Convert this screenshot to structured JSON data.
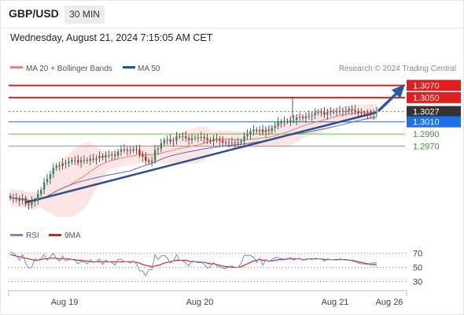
{
  "header": {
    "symbol": "GBP/USD",
    "timeframe": "30 MIN",
    "datetime": "Wednesday, August 21, 2024 7:15:05 AM CET"
  },
  "legend": {
    "ma20": "MA 20 + Bollinger Bands",
    "ma50": "MA 50",
    "credit": "Research © 2024 Trading Central",
    "rsi": "RSI",
    "ma9": "9MA"
  },
  "colors": {
    "ma20": "#f08080",
    "ma50": "#2f4f8f",
    "bollinger_fill": "#fde0e0",
    "resistance": "#e02020",
    "support": "#6abf4b",
    "pivot": "#2f6f9f",
    "last_price": "#333333",
    "pivot_label": "#1e6fe8",
    "arrow": "#2c5aa0",
    "rsi": "#6b8fd6",
    "rsi_ma": "#e02020"
  },
  "chart_data": {
    "type": "candlestick",
    "x_labels": [
      "Aug 19",
      "Aug 20",
      "Aug 21",
      "Aug 26"
    ],
    "levels": [
      {
        "value": 1.307,
        "label": "1.3070",
        "kind": "resistance"
      },
      {
        "value": 1.305,
        "label": "1.3050",
        "kind": "resistance"
      },
      {
        "value": 1.3027,
        "label": "1.3027",
        "kind": "last"
      },
      {
        "value": 1.301,
        "label": "1.3010",
        "kind": "pivot"
      },
      {
        "value": 1.299,
        "label": "1.2990",
        "kind": "support"
      },
      {
        "value": 1.297,
        "label": "1.2970",
        "kind": "support"
      }
    ],
    "price_range": [
      1.2865,
      1.3075
    ],
    "close": [
      1.2885,
      1.2884,
      1.2883,
      1.288,
      1.2884,
      1.2875,
      1.2873,
      1.2879,
      1.288,
      1.2891,
      1.2898,
      1.2911,
      1.2916,
      1.2924,
      1.2934,
      1.2938,
      1.2937,
      1.2942,
      1.2942,
      1.2944,
      1.2947,
      1.2947,
      1.2943,
      1.2947,
      1.2947,
      1.2946,
      1.2949,
      1.2948,
      1.295,
      1.2954,
      1.2951,
      1.2955,
      1.2955,
      1.2956,
      1.2954,
      1.2961,
      1.2965,
      1.2964,
      1.2963,
      1.2963,
      1.2965,
      1.2964,
      1.2956,
      1.2953,
      1.2946,
      1.2944,
      1.2946,
      1.2964,
      1.2966,
      1.2975,
      1.298,
      1.2981,
      1.2978,
      1.2979,
      1.2986,
      1.2986,
      1.2986,
      1.2983,
      1.298,
      1.2983,
      1.2984,
      1.2984,
      1.2985,
      1.2983,
      1.298,
      1.2978,
      1.2982,
      1.2981,
      1.2979,
      1.2976,
      1.2975,
      1.2976,
      1.2976,
      1.2976,
      1.2976,
      1.2978,
      1.2986,
      1.2989,
      1.2994,
      1.2997,
      1.2995,
      1.2997,
      1.2993,
      1.2997,
      1.2995,
      1.3,
      1.3003,
      1.3009,
      1.3009,
      1.3011,
      1.3011,
      1.3013,
      1.3013,
      1.3017,
      1.3018,
      1.3016,
      1.3019,
      1.302,
      1.3021,
      1.3025,
      1.3026,
      1.3026,
      1.3022,
      1.3026,
      1.3027,
      1.3027,
      1.3027,
      1.3028,
      1.3028,
      1.3028,
      1.3031,
      1.3029,
      1.3027,
      1.3025,
      1.3024,
      1.3024,
      1.3022,
      1.3022,
      1.3025,
      1.3027
    ],
    "x_axis": {
      "labels": [
        "Aug 19",
        "Aug 20",
        "Aug 21",
        "Aug 26"
      ]
    },
    "rsi": {
      "levels": [
        70,
        50,
        30
      ],
      "range": [
        20,
        80
      ],
      "values": [
        72,
        70,
        66,
        60,
        68,
        56,
        49,
        50,
        62,
        60,
        63,
        68,
        60,
        65,
        70,
        62,
        59,
        66,
        59,
        61,
        61,
        60,
        55,
        58,
        58,
        55,
        61,
        57,
        58,
        62,
        54,
        60,
        58,
        57,
        53,
        61,
        62,
        58,
        58,
        56,
        59,
        55,
        45,
        45,
        38,
        47,
        47,
        68,
        61,
        66,
        67,
        63,
        56,
        59,
        68,
        60,
        59,
        56,
        52,
        59,
        58,
        58,
        58,
        54,
        49,
        51,
        57,
        52,
        51,
        49,
        48,
        51,
        52,
        50,
        50,
        56,
        67,
        67,
        67,
        64,
        57,
        63,
        53,
        61,
        58,
        61,
        64,
        64,
        62,
        62,
        61,
        64,
        60,
        62,
        63,
        60,
        62,
        62,
        61,
        63,
        62,
        62,
        59,
        62,
        61,
        61,
        60,
        62,
        61,
        60,
        61,
        59,
        58,
        56,
        55,
        55,
        54,
        56,
        56,
        57
      ],
      "ma9": [
        68,
        67,
        66,
        65,
        64,
        63,
        62,
        61,
        60,
        60,
        61,
        62,
        62,
        63,
        63,
        63,
        62,
        62,
        62,
        62,
        61,
        61,
        60,
        60,
        59,
        59,
        58,
        58,
        58,
        58,
        58,
        58,
        58,
        58,
        58,
        58,
        58,
        58,
        58,
        58,
        58,
        57,
        56,
        54,
        53,
        52,
        51,
        52,
        53,
        54,
        56,
        57,
        58,
        59,
        60,
        60,
        60,
        60,
        59,
        58,
        58,
        57,
        57,
        57,
        56,
        55,
        55,
        54,
        53,
        52,
        51,
        51,
        50,
        50,
        50,
        51,
        53,
        55,
        57,
        59,
        60,
        61,
        60,
        60,
        59,
        59,
        60,
        61,
        61,
        61,
        62,
        62,
        62,
        62,
        62,
        61,
        61,
        62,
        62,
        62,
        62,
        62,
        61,
        61,
        61,
        61,
        61,
        61,
        61,
        61,
        60,
        60,
        59,
        58,
        57,
        56,
        55,
        54,
        54,
        54
      ]
    }
  }
}
